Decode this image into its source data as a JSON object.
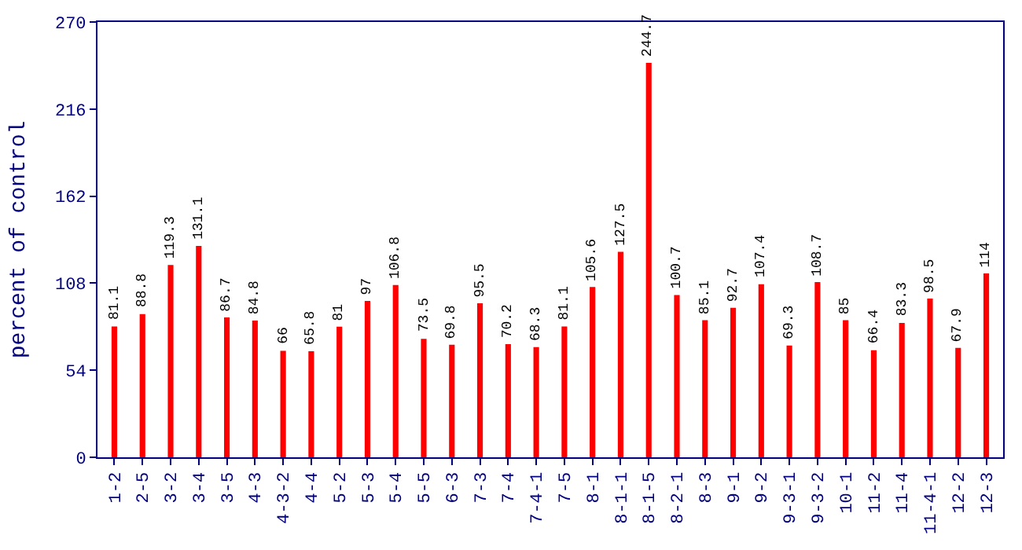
{
  "chart_data": {
    "type": "bar",
    "ylabel": "percent of control",
    "categories": [
      "1-2",
      "2-5",
      "3-2",
      "3-4",
      "3-5",
      "4-3",
      "4-3-2",
      "4-4",
      "5-2",
      "5-3",
      "5-4",
      "5-5",
      "6-3",
      "7-3",
      "7-4",
      "7-4-1",
      "7-5",
      "8-1",
      "8-1-1",
      "8-1-5",
      "8-2-1",
      "8-3",
      "9-1",
      "9-2",
      "9-3-1",
      "9-3-2",
      "10-1",
      "11-2",
      "11-4",
      "11-4-1",
      "12-2",
      "12-3"
    ],
    "values": [
      81.1,
      88.8,
      119.3,
      131.1,
      86.7,
      84.8,
      66,
      65.8,
      81,
      97,
      106.8,
      73.5,
      69.8,
      95.5,
      70.2,
      68.3,
      81.1,
      105.6,
      127.5,
      244.7,
      100.7,
      85.1,
      92.7,
      107.4,
      69.3,
      108.7,
      85,
      66.4,
      83.3,
      98.5,
      67.9,
      114
    ],
    "color": "#ff0000",
    "data_labels": true,
    "ylim": [
      0,
      270
    ],
    "yticks": [
      0,
      54,
      108,
      162,
      216,
      270
    ]
  }
}
